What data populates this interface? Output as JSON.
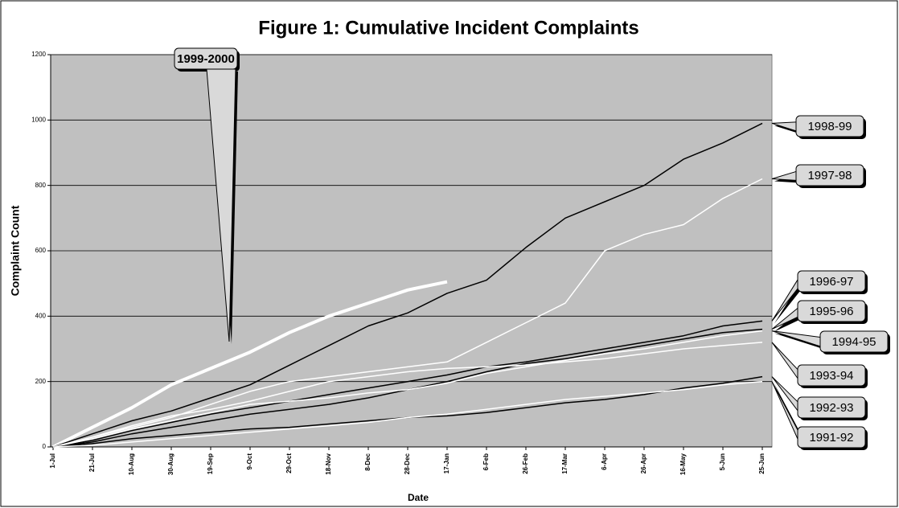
{
  "chart_data": {
    "type": "line",
    "title": "Figure 1: Cumulative Incident Complaints",
    "x_label": "Date",
    "y_label": "Complaint Count",
    "categories": [
      "1-Jul",
      "21-Jul",
      "10-Aug",
      "30-Aug",
      "19-Sep",
      "9-Oct",
      "29-Oct",
      "18-Nov",
      "8-Dec",
      "28-Dec",
      "17-Jan",
      "6-Feb",
      "26-Feb",
      "17-Mar",
      "6-Apr",
      "26-Apr",
      "16-May",
      "5-Jun",
      "25-Jun"
    ],
    "ylim": [
      0,
      1200
    ],
    "yticks": [
      0,
      200,
      400,
      600,
      800,
      1000,
      1200
    ],
    "grid": true,
    "background": "#c0c0c0",
    "series": [
      {
        "name": "1999-2000",
        "color": "#ffffff",
        "line_width": 4,
        "values": [
          0,
          60,
          120,
          190,
          240,
          290,
          350,
          400,
          440,
          480,
          505,
          null,
          null,
          null,
          null,
          null,
          null,
          null,
          null
        ]
      },
      {
        "name": "1998-99",
        "color": "#000000",
        "line_width": 1.5,
        "values": [
          0,
          40,
          80,
          110,
          150,
          190,
          250,
          310,
          370,
          410,
          470,
          510,
          610,
          700,
          750,
          800,
          880,
          930,
          990
        ]
      },
      {
        "name": "1997-98",
        "color": "#ffffff",
        "line_width": 1.5,
        "values": [
          0,
          30,
          60,
          90,
          130,
          170,
          200,
          215,
          230,
          245,
          260,
          320,
          380,
          440,
          600,
          650,
          680,
          760,
          820
        ]
      },
      {
        "name": "1996-97",
        "color": "#000000",
        "line_width": 1.5,
        "values": [
          0,
          20,
          50,
          75,
          100,
          120,
          140,
          160,
          180,
          200,
          220,
          245,
          260,
          280,
          300,
          320,
          340,
          370,
          385
        ]
      },
      {
        "name": "1995-96",
        "color": "#000000",
        "line_width": 1.5,
        "values": [
          0,
          15,
          40,
          60,
          80,
          100,
          115,
          130,
          150,
          175,
          200,
          230,
          255,
          270,
          290,
          310,
          330,
          350,
          360
        ]
      },
      {
        "name": "1994-95",
        "color": "#ffffff",
        "line_width": 1.5,
        "values": [
          0,
          25,
          55,
          80,
          105,
          130,
          140,
          150,
          165,
          175,
          195,
          225,
          245,
          265,
          285,
          300,
          320,
          340,
          355
        ]
      },
      {
        "name": "1993-94",
        "color": "#ffffff",
        "line_width": 1.5,
        "values": [
          0,
          30,
          65,
          95,
          115,
          140,
          170,
          200,
          215,
          230,
          240,
          245,
          250,
          260,
          270,
          285,
          300,
          310,
          320
        ]
      },
      {
        "name": "1992-93",
        "color": "#000000",
        "line_width": 1.5,
        "values": [
          0,
          10,
          25,
          35,
          45,
          55,
          60,
          70,
          80,
          90,
          95,
          105,
          120,
          135,
          145,
          160,
          180,
          195,
          215
        ]
      },
      {
        "name": "1991-92",
        "color": "#ffffff",
        "line_width": 1.5,
        "values": [
          0,
          5,
          15,
          25,
          35,
          45,
          55,
          65,
          75,
          90,
          100,
          115,
          130,
          145,
          155,
          165,
          175,
          190,
          200
        ]
      }
    ]
  }
}
